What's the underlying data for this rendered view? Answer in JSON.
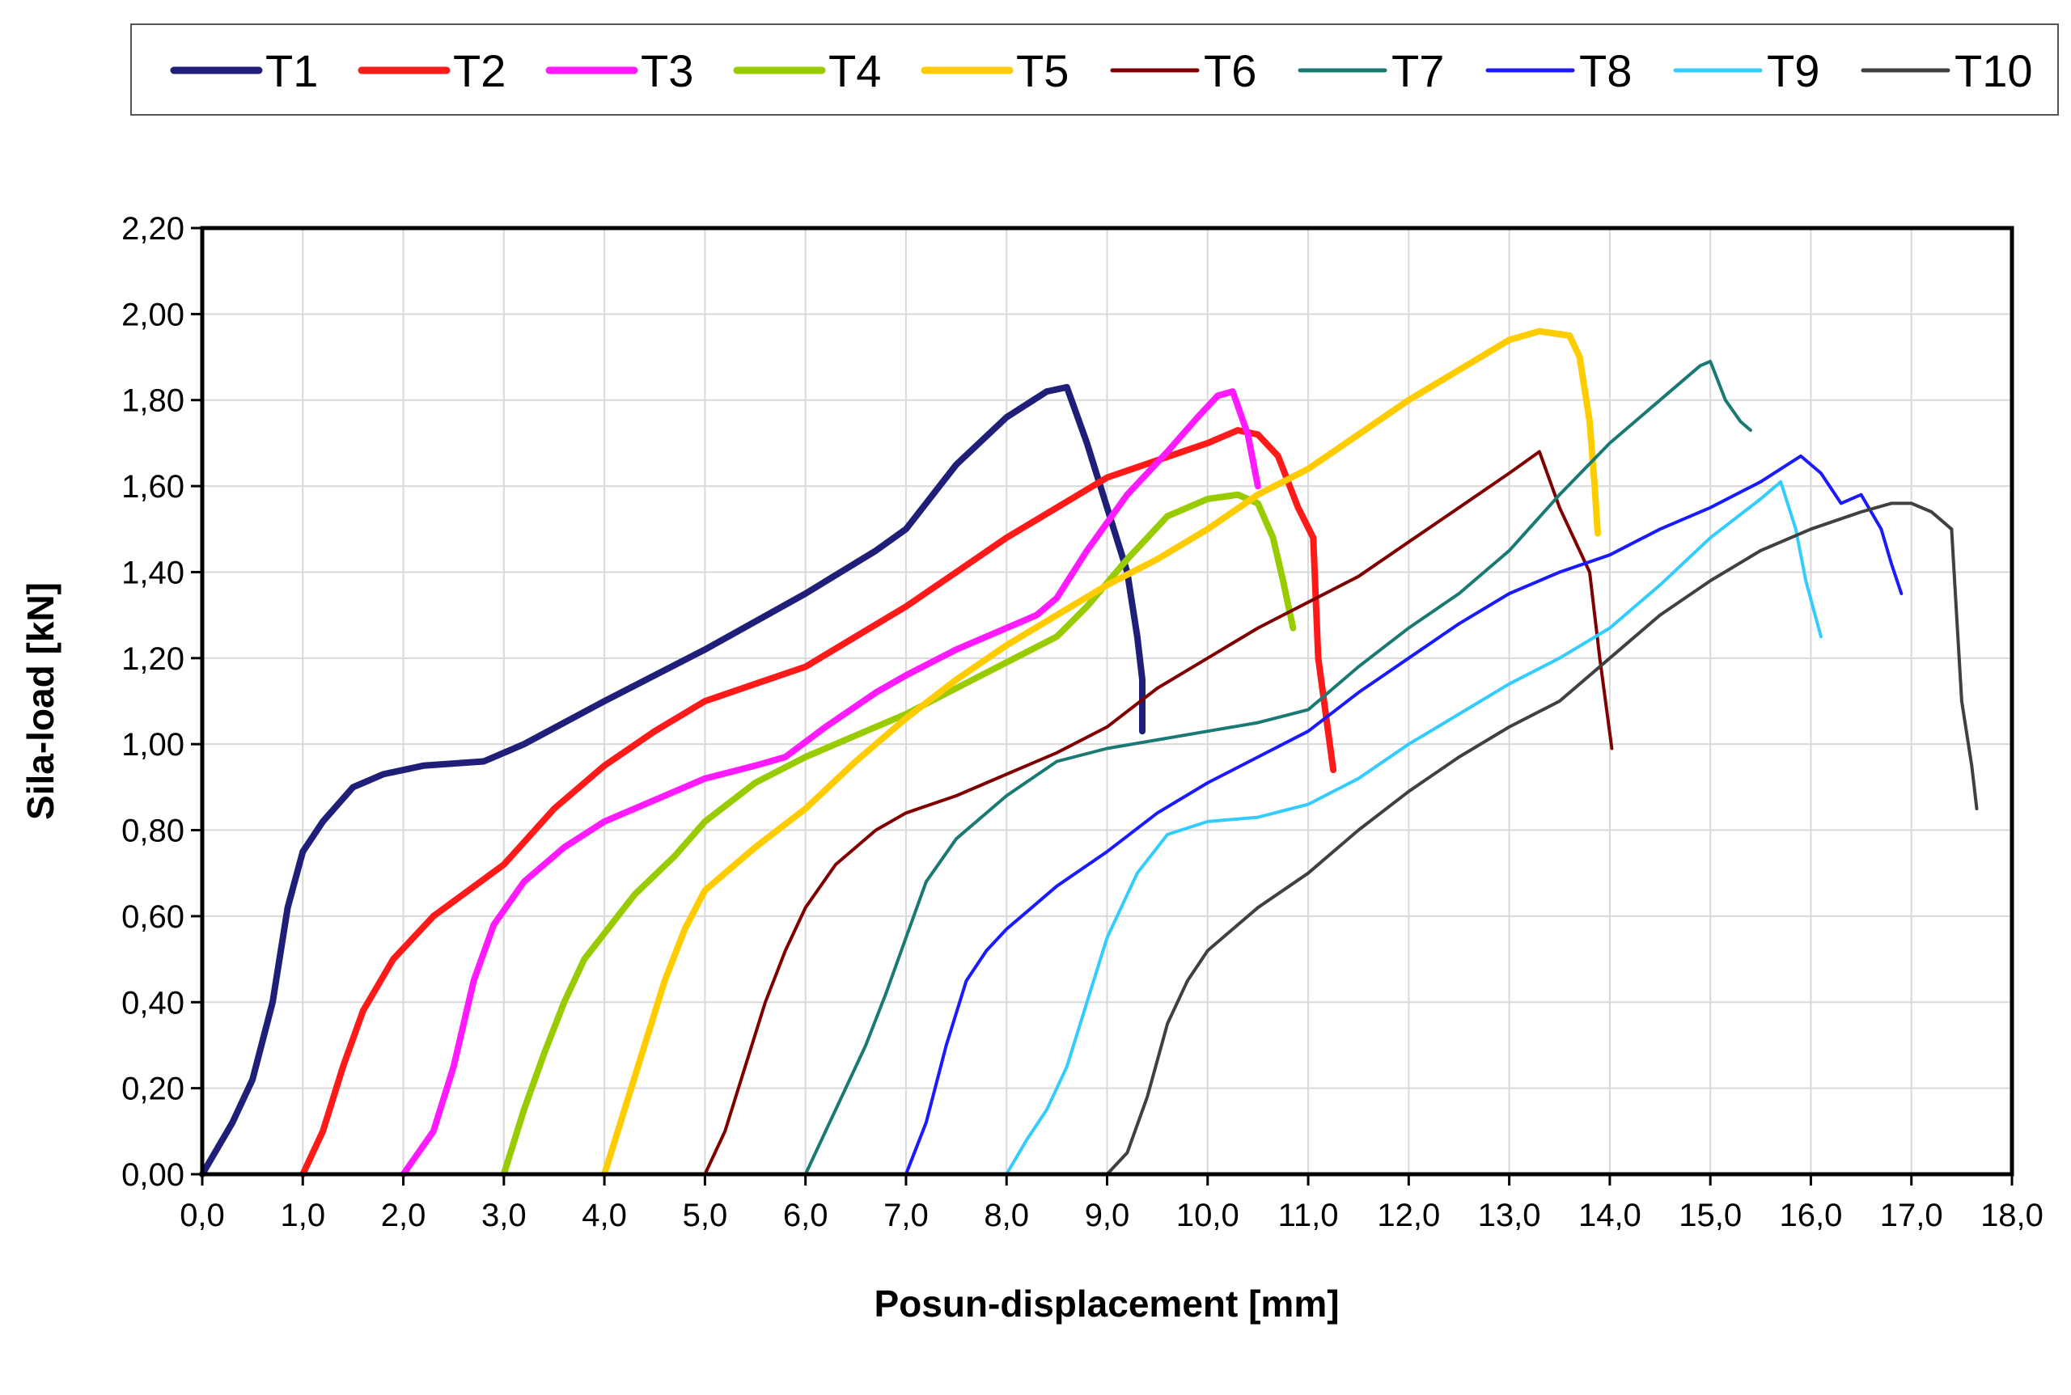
{
  "chart_data": {
    "type": "line",
    "title": "",
    "xlabel": "Posun-displacement [mm]",
    "ylabel": "Sila-load [kN]",
    "xlim": [
      0,
      18
    ],
    "ylim": [
      0,
      2.2
    ],
    "x_ticks": [
      "0,0",
      "1,0",
      "2,0",
      "3,0",
      "4,0",
      "5,0",
      "6,0",
      "7,0",
      "8,0",
      "9,0",
      "10,0",
      "11,0",
      "12,0",
      "13,0",
      "14,0",
      "15,0",
      "16,0",
      "17,0",
      "18,0"
    ],
    "y_ticks": [
      "0,00",
      "0,20",
      "0,40",
      "0,60",
      "0,80",
      "1,00",
      "1,20",
      "1,40",
      "1,60",
      "1,80",
      "2,00",
      "2,20"
    ],
    "grid": true,
    "legend_position": "top",
    "series": [
      {
        "name": "T1",
        "color": "#1f1f7a",
        "width": 8,
        "points": [
          [
            0,
            0
          ],
          [
            0.3,
            0.12
          ],
          [
            0.5,
            0.22
          ],
          [
            0.7,
            0.4
          ],
          [
            0.85,
            0.62
          ],
          [
            1.0,
            0.75
          ],
          [
            1.2,
            0.82
          ],
          [
            1.5,
            0.9
          ],
          [
            1.8,
            0.93
          ],
          [
            2.2,
            0.95
          ],
          [
            2.8,
            0.96
          ],
          [
            3.2,
            1.0
          ],
          [
            4.0,
            1.1
          ],
          [
            5.0,
            1.22
          ],
          [
            6.0,
            1.35
          ],
          [
            6.7,
            1.45
          ],
          [
            7.0,
            1.5
          ],
          [
            7.5,
            1.65
          ],
          [
            8.0,
            1.76
          ],
          [
            8.4,
            1.82
          ],
          [
            8.6,
            1.83
          ],
          [
            8.8,
            1.7
          ],
          [
            9.0,
            1.55
          ],
          [
            9.2,
            1.4
          ],
          [
            9.3,
            1.25
          ],
          [
            9.35,
            1.15
          ],
          [
            9.35,
            1.03
          ]
        ]
      },
      {
        "name": "T2",
        "color": "#ff1a1a",
        "width": 8,
        "points": [
          [
            1.0,
            0
          ],
          [
            1.2,
            0.1
          ],
          [
            1.4,
            0.25
          ],
          [
            1.6,
            0.38
          ],
          [
            1.9,
            0.5
          ],
          [
            2.3,
            0.6
          ],
          [
            3.0,
            0.72
          ],
          [
            3.5,
            0.85
          ],
          [
            4.0,
            0.95
          ],
          [
            4.5,
            1.03
          ],
          [
            5.0,
            1.1
          ],
          [
            5.5,
            1.14
          ],
          [
            6.0,
            1.18
          ],
          [
            6.5,
            1.25
          ],
          [
            7.0,
            1.32
          ],
          [
            7.5,
            1.4
          ],
          [
            8.0,
            1.48
          ],
          [
            8.5,
            1.55
          ],
          [
            9.0,
            1.62
          ],
          [
            9.5,
            1.66
          ],
          [
            10.0,
            1.7
          ],
          [
            10.3,
            1.73
          ],
          [
            10.5,
            1.72
          ],
          [
            10.7,
            1.67
          ],
          [
            10.9,
            1.55
          ],
          [
            11.05,
            1.48
          ],
          [
            11.1,
            1.2
          ],
          [
            11.25,
            0.94
          ]
        ]
      },
      {
        "name": "T3",
        "color": "#ff1aff",
        "width": 8,
        "points": [
          [
            2.0,
            0
          ],
          [
            2.3,
            0.1
          ],
          [
            2.5,
            0.25
          ],
          [
            2.7,
            0.45
          ],
          [
            2.9,
            0.58
          ],
          [
            3.2,
            0.68
          ],
          [
            3.6,
            0.76
          ],
          [
            4.0,
            0.82
          ],
          [
            4.5,
            0.87
          ],
          [
            5.0,
            0.92
          ],
          [
            5.5,
            0.95
          ],
          [
            5.8,
            0.97
          ],
          [
            6.2,
            1.04
          ],
          [
            6.7,
            1.12
          ],
          [
            7.0,
            1.16
          ],
          [
            7.5,
            1.22
          ],
          [
            8.0,
            1.27
          ],
          [
            8.3,
            1.3
          ],
          [
            8.5,
            1.34
          ],
          [
            8.8,
            1.45
          ],
          [
            9.2,
            1.58
          ],
          [
            9.6,
            1.68
          ],
          [
            9.9,
            1.76
          ],
          [
            10.1,
            1.81
          ],
          [
            10.25,
            1.82
          ],
          [
            10.4,
            1.72
          ],
          [
            10.5,
            1.6
          ]
        ]
      },
      {
        "name": "T4",
        "color": "#99cc00",
        "width": 8,
        "points": [
          [
            3.0,
            0
          ],
          [
            3.2,
            0.15
          ],
          [
            3.4,
            0.28
          ],
          [
            3.6,
            0.4
          ],
          [
            3.8,
            0.5
          ],
          [
            4.0,
            0.56
          ],
          [
            4.3,
            0.65
          ],
          [
            4.7,
            0.74
          ],
          [
            5.0,
            0.82
          ],
          [
            5.5,
            0.91
          ],
          [
            6.0,
            0.97
          ],
          [
            6.5,
            1.02
          ],
          [
            7.0,
            1.07
          ],
          [
            7.5,
            1.13
          ],
          [
            8.0,
            1.19
          ],
          [
            8.5,
            1.25
          ],
          [
            8.8,
            1.32
          ],
          [
            9.2,
            1.43
          ],
          [
            9.6,
            1.53
          ],
          [
            10.0,
            1.57
          ],
          [
            10.3,
            1.58
          ],
          [
            10.5,
            1.56
          ],
          [
            10.65,
            1.48
          ],
          [
            10.75,
            1.38
          ],
          [
            10.85,
            1.27
          ]
        ]
      },
      {
        "name": "T5",
        "color": "#ffcc00",
        "width": 8,
        "points": [
          [
            4.0,
            0
          ],
          [
            4.2,
            0.15
          ],
          [
            4.4,
            0.3
          ],
          [
            4.6,
            0.45
          ],
          [
            4.8,
            0.57
          ],
          [
            5.0,
            0.66
          ],
          [
            5.5,
            0.76
          ],
          [
            6.0,
            0.85
          ],
          [
            6.5,
            0.96
          ],
          [
            7.0,
            1.06
          ],
          [
            7.5,
            1.15
          ],
          [
            8.0,
            1.23
          ],
          [
            8.5,
            1.3
          ],
          [
            9.0,
            1.37
          ],
          [
            9.5,
            1.43
          ],
          [
            10.0,
            1.5
          ],
          [
            10.5,
            1.58
          ],
          [
            11.0,
            1.64
          ],
          [
            11.5,
            1.72
          ],
          [
            12.0,
            1.8
          ],
          [
            12.5,
            1.87
          ],
          [
            13.0,
            1.94
          ],
          [
            13.3,
            1.96
          ],
          [
            13.6,
            1.95
          ],
          [
            13.7,
            1.9
          ],
          [
            13.8,
            1.75
          ],
          [
            13.85,
            1.6
          ],
          [
            13.88,
            1.49
          ]
        ]
      },
      {
        "name": "T6",
        "color": "#800000",
        "width": 4,
        "points": [
          [
            5.0,
            0
          ],
          [
            5.2,
            0.1
          ],
          [
            5.4,
            0.25
          ],
          [
            5.6,
            0.4
          ],
          [
            5.8,
            0.52
          ],
          [
            6.0,
            0.62
          ],
          [
            6.3,
            0.72
          ],
          [
            6.7,
            0.8
          ],
          [
            7.0,
            0.84
          ],
          [
            7.5,
            0.88
          ],
          [
            8.0,
            0.93
          ],
          [
            8.5,
            0.98
          ],
          [
            9.0,
            1.04
          ],
          [
            9.5,
            1.13
          ],
          [
            10.0,
            1.2
          ],
          [
            10.5,
            1.27
          ],
          [
            11.0,
            1.33
          ],
          [
            11.5,
            1.39
          ],
          [
            12.0,
            1.47
          ],
          [
            12.5,
            1.55
          ],
          [
            13.0,
            1.63
          ],
          [
            13.3,
            1.68
          ],
          [
            13.5,
            1.55
          ],
          [
            13.8,
            1.4
          ],
          [
            13.9,
            1.2
          ],
          [
            14.02,
            0.99
          ]
        ]
      },
      {
        "name": "T7",
        "color": "#1a7a73",
        "width": 4,
        "points": [
          [
            6.0,
            0
          ],
          [
            6.2,
            0.1
          ],
          [
            6.4,
            0.2
          ],
          [
            6.6,
            0.3
          ],
          [
            6.8,
            0.42
          ],
          [
            7.0,
            0.55
          ],
          [
            7.2,
            0.68
          ],
          [
            7.5,
            0.78
          ],
          [
            8.0,
            0.88
          ],
          [
            8.5,
            0.96
          ],
          [
            9.0,
            0.99
          ],
          [
            9.5,
            1.01
          ],
          [
            10.0,
            1.03
          ],
          [
            10.5,
            1.05
          ],
          [
            11.0,
            1.08
          ],
          [
            11.5,
            1.18
          ],
          [
            12.0,
            1.27
          ],
          [
            12.5,
            1.35
          ],
          [
            13.0,
            1.45
          ],
          [
            13.5,
            1.58
          ],
          [
            14.0,
            1.7
          ],
          [
            14.5,
            1.8
          ],
          [
            14.9,
            1.88
          ],
          [
            15.0,
            1.89
          ],
          [
            15.15,
            1.8
          ],
          [
            15.3,
            1.75
          ],
          [
            15.4,
            1.73
          ]
        ]
      },
      {
        "name": "T8",
        "color": "#1a1aff",
        "width": 4,
        "points": [
          [
            7.0,
            0
          ],
          [
            7.2,
            0.12
          ],
          [
            7.4,
            0.3
          ],
          [
            7.6,
            0.45
          ],
          [
            7.8,
            0.52
          ],
          [
            8.0,
            0.57
          ],
          [
            8.5,
            0.67
          ],
          [
            9.0,
            0.75
          ],
          [
            9.5,
            0.84
          ],
          [
            10.0,
            0.91
          ],
          [
            10.5,
            0.97
          ],
          [
            11.0,
            1.03
          ],
          [
            11.5,
            1.12
          ],
          [
            12.0,
            1.2
          ],
          [
            12.5,
            1.28
          ],
          [
            13.0,
            1.35
          ],
          [
            13.5,
            1.4
          ],
          [
            14.0,
            1.44
          ],
          [
            14.5,
            1.5
          ],
          [
            15.0,
            1.55
          ],
          [
            15.5,
            1.61
          ],
          [
            15.9,
            1.67
          ],
          [
            16.1,
            1.63
          ],
          [
            16.3,
            1.56
          ],
          [
            16.5,
            1.58
          ],
          [
            16.7,
            1.5
          ],
          [
            16.8,
            1.42
          ],
          [
            16.9,
            1.35
          ]
        ]
      },
      {
        "name": "T9",
        "color": "#33ccff",
        "width": 4,
        "points": [
          [
            8.0,
            0
          ],
          [
            8.2,
            0.08
          ],
          [
            8.4,
            0.15
          ],
          [
            8.6,
            0.25
          ],
          [
            8.8,
            0.4
          ],
          [
            9.0,
            0.55
          ],
          [
            9.3,
            0.7
          ],
          [
            9.6,
            0.79
          ],
          [
            10.0,
            0.82
          ],
          [
            10.5,
            0.83
          ],
          [
            11.0,
            0.86
          ],
          [
            11.5,
            0.92
          ],
          [
            12.0,
            1.0
          ],
          [
            12.5,
            1.07
          ],
          [
            13.0,
            1.14
          ],
          [
            13.5,
            1.2
          ],
          [
            14.0,
            1.27
          ],
          [
            14.5,
            1.37
          ],
          [
            15.0,
            1.48
          ],
          [
            15.5,
            1.57
          ],
          [
            15.7,
            1.61
          ],
          [
            15.85,
            1.5
          ],
          [
            15.95,
            1.38
          ],
          [
            16.1,
            1.25
          ]
        ]
      },
      {
        "name": "T10",
        "color": "#404040",
        "width": 4,
        "points": [
          [
            9.0,
            0
          ],
          [
            9.2,
            0.05
          ],
          [
            9.4,
            0.18
          ],
          [
            9.6,
            0.35
          ],
          [
            9.8,
            0.45
          ],
          [
            10.0,
            0.52
          ],
          [
            10.5,
            0.62
          ],
          [
            11.0,
            0.7
          ],
          [
            11.5,
            0.8
          ],
          [
            12.0,
            0.89
          ],
          [
            12.5,
            0.97
          ],
          [
            13.0,
            1.04
          ],
          [
            13.5,
            1.1
          ],
          [
            14.0,
            1.2
          ],
          [
            14.5,
            1.3
          ],
          [
            15.0,
            1.38
          ],
          [
            15.5,
            1.45
          ],
          [
            16.0,
            1.5
          ],
          [
            16.5,
            1.54
          ],
          [
            16.8,
            1.56
          ],
          [
            17.0,
            1.56
          ],
          [
            17.2,
            1.54
          ],
          [
            17.4,
            1.5
          ],
          [
            17.45,
            1.3
          ],
          [
            17.5,
            1.1
          ],
          [
            17.6,
            0.95
          ],
          [
            17.65,
            0.85
          ]
        ]
      }
    ]
  }
}
